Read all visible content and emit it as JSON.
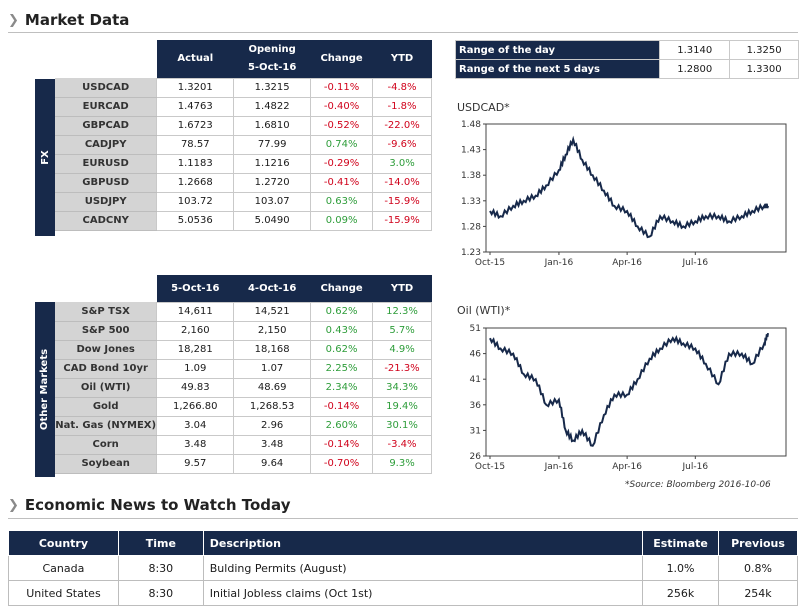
{
  "market_title": "Market Data",
  "fx": {
    "side_label": "FX",
    "headers": [
      "Actual",
      "Opening\n5-Oct-16",
      "Change",
      "YTD"
    ],
    "rows": [
      {
        "name": "USDCAD",
        "actual": "1.3201",
        "open": "1.3215",
        "change": "-0.11%",
        "ytd": "-4.8%"
      },
      {
        "name": "EURCAD",
        "actual": "1.4763",
        "open": "1.4822",
        "change": "-0.40%",
        "ytd": "-1.8%"
      },
      {
        "name": "GBPCAD",
        "actual": "1.6723",
        "open": "1.6810",
        "change": "-0.52%",
        "ytd": "-22.0%"
      },
      {
        "name": "CADJPY",
        "actual": "78.57",
        "open": "77.99",
        "change": "0.74%",
        "ytd": "-9.6%"
      },
      {
        "name": "EURUSD",
        "actual": "1.1183",
        "open": "1.1216",
        "change": "-0.29%",
        "ytd": "3.0%"
      },
      {
        "name": "GBPUSD",
        "actual": "1.2668",
        "open": "1.2720",
        "change": "-0.41%",
        "ytd": "-14.0%"
      },
      {
        "name": "USDJPY",
        "actual": "103.72",
        "open": "103.07",
        "change": "0.63%",
        "ytd": "-15.9%"
      },
      {
        "name": "CADCNY",
        "actual": "5.0536",
        "open": "5.0490",
        "change": "0.09%",
        "ytd": "-15.9%"
      }
    ]
  },
  "other": {
    "side_label": "Other Markets",
    "headers": [
      "5-Oct-16",
      "4-Oct-16",
      "Change",
      "YTD"
    ],
    "rows": [
      {
        "name": "S&P TSX",
        "a": "14,611",
        "b": "14,521",
        "change": "0.62%",
        "ytd": "12.3%"
      },
      {
        "name": "S&P 500",
        "a": "2,160",
        "b": "2,150",
        "change": "0.43%",
        "ytd": "5.7%"
      },
      {
        "name": "Dow Jones",
        "a": "18,281",
        "b": "18,168",
        "change": "0.62%",
        "ytd": "4.9%"
      },
      {
        "name": "CAD Bond 10yr",
        "a": "1.09",
        "b": "1.07",
        "change": "2.25%",
        "ytd": "-21.3%"
      },
      {
        "name": "Oil (WTI)",
        "a": "49.83",
        "b": "48.69",
        "change": "2.34%",
        "ytd": "34.3%"
      },
      {
        "name": "Gold",
        "a": "1,266.80",
        "b": "1,268.53",
        "change": "-0.14%",
        "ytd": "19.4%"
      },
      {
        "name": "Nat. Gas (NYMEX)",
        "a": "3.04",
        "b": "2.96",
        "change": "2.60%",
        "ytd": "30.1%"
      },
      {
        "name": "Corn",
        "a": "3.48",
        "b": "3.48",
        "change": "-0.14%",
        "ytd": "-3.4%"
      },
      {
        "name": "Soybean",
        "a": "9.57",
        "b": "9.64",
        "change": "-0.70%",
        "ytd": "9.3%"
      }
    ]
  },
  "range": [
    {
      "label": "Range of the day",
      "low": "1.3140",
      "high": "1.3250"
    },
    {
      "label": "Range of the next 5 days",
      "low": "1.2800",
      "high": "1.3300"
    }
  ],
  "source": "*Source: Bloomberg  2016-10-06",
  "news_title": "Economic News to Watch Today",
  "news": {
    "headers": [
      "Country",
      "Time",
      "Description",
      "Estimate",
      "Previous"
    ],
    "rows": [
      {
        "country": "Canada",
        "time": "8:30",
        "desc": "Bulding Permits (August)",
        "est": "1.0%",
        "prev": "0.8%"
      },
      {
        "country": "United States",
        "time": "8:30",
        "desc": "Initial Jobless claims (Oct 1st)",
        "est": "256k",
        "prev": "254k"
      }
    ]
  },
  "chart_data": [
    {
      "type": "line",
      "title": "USDCAD*",
      "xlabel": "",
      "ylabel": "",
      "x_ticks": [
        "Oct-15",
        "Jan-16",
        "Apr-16",
        "Jul-16"
      ],
      "y_ticks": [
        "1.48",
        "1.43",
        "1.38",
        "1.33",
        "1.28",
        "1.23"
      ],
      "ylim": [
        1.23,
        1.48
      ],
      "x": [
        "2015-10-01",
        "2015-10-15",
        "2015-11-01",
        "2015-11-15",
        "2015-12-01",
        "2015-12-15",
        "2016-01-01",
        "2016-01-10",
        "2016-01-20",
        "2016-02-01",
        "2016-02-15",
        "2016-03-01",
        "2016-03-15",
        "2016-04-01",
        "2016-04-15",
        "2016-05-01",
        "2016-05-15",
        "2016-06-01",
        "2016-06-15",
        "2016-07-01",
        "2016-07-15",
        "2016-08-01",
        "2016-08-15",
        "2016-09-01",
        "2016-09-15",
        "2016-10-01",
        "2016-10-06"
      ],
      "series": [
        {
          "values": [
            1.31,
            1.3,
            1.32,
            1.33,
            1.34,
            1.36,
            1.39,
            1.42,
            1.45,
            1.41,
            1.38,
            1.35,
            1.32,
            1.31,
            1.28,
            1.26,
            1.3,
            1.29,
            1.28,
            1.29,
            1.3,
            1.3,
            1.29,
            1.3,
            1.31,
            1.32,
            1.32
          ]
        }
      ]
    },
    {
      "type": "line",
      "title": "Oil (WTI)*",
      "xlabel": "",
      "ylabel": "",
      "x_ticks": [
        "Oct-15",
        "Jan-16",
        "Apr-16",
        "Jul-16"
      ],
      "y_ticks": [
        "51",
        "46",
        "41",
        "36",
        "31",
        "26"
      ],
      "ylim": [
        26,
        51
      ],
      "x": [
        "2015-10-01",
        "2015-10-15",
        "2015-11-01",
        "2015-11-15",
        "2015-12-01",
        "2015-12-15",
        "2016-01-01",
        "2016-01-10",
        "2016-01-20",
        "2016-02-01",
        "2016-02-15",
        "2016-03-01",
        "2016-03-15",
        "2016-04-01",
        "2016-04-15",
        "2016-05-01",
        "2016-05-15",
        "2016-06-01",
        "2016-06-15",
        "2016-07-01",
        "2016-07-15",
        "2016-08-01",
        "2016-08-15",
        "2016-09-01",
        "2016-09-15",
        "2016-10-01",
        "2016-10-06"
      ],
      "series": [
        {
          "values": [
            49,
            47,
            46,
            42,
            41,
            36,
            37,
            31,
            29,
            31,
            28,
            34,
            38,
            38,
            41,
            45,
            47,
            49,
            48,
            47,
            44,
            40,
            46,
            46,
            44,
            48,
            50
          ]
        }
      ]
    }
  ]
}
